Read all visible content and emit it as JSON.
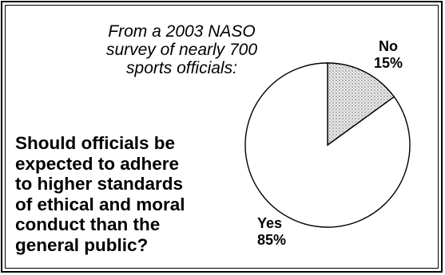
{
  "figure": {
    "intro_lines": [
      "From a 2003 NASO",
      "survey of nearly 700",
      "sports officials:"
    ],
    "question_lines": [
      "Should officials be",
      "expected to adhere",
      "to higher standards",
      "of ethical and moral",
      "conduct than the",
      "general public?"
    ]
  },
  "chart_data": {
    "type": "pie",
    "slices": [
      {
        "label": "No",
        "value": 15,
        "value_label": "15%",
        "fill": "#e0e0e0",
        "pattern": "stipple"
      },
      {
        "label": "Yes",
        "value": 85,
        "value_label": "85%",
        "fill": "#ffffff"
      }
    ],
    "start": "12 o'clock",
    "direction": "clockwise",
    "border_color": "#000000"
  }
}
